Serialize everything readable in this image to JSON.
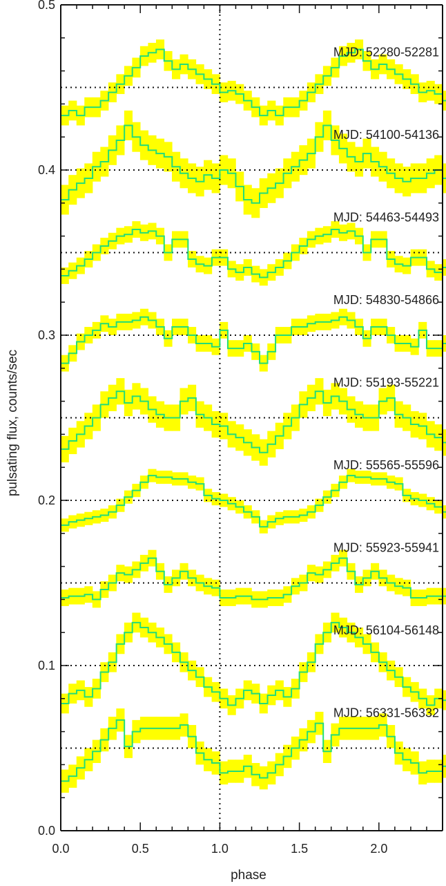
{
  "chart_data": {
    "type": "line",
    "xlabel": "phase",
    "ylabel": "pulsating flux, counts/sec",
    "xlim": [
      0.0,
      2.4
    ],
    "ylim": [
      0.0,
      0.5
    ],
    "xticks": [
      0.0,
      0.5,
      1.0,
      1.5,
      2.0
    ],
    "xtick_labels": [
      "0.0",
      "0.5",
      "1.0",
      "1.5",
      "2.0"
    ],
    "yticks": [
      0.0,
      0.1,
      0.2,
      0.3,
      0.4,
      0.5
    ],
    "ytick_labels": [
      "0.0",
      "0.1",
      "0.2",
      "0.3",
      "0.4",
      "0.5"
    ],
    "vertical_reference_line": 1.0,
    "grid": false,
    "line_color": "#22dd77",
    "error_band_color": "#ffff00",
    "bin_width": 0.05,
    "series": [
      {
        "name": "MJD: 52280-52281",
        "baseline": 0.45,
        "error": 0.006,
        "values": [
          0.433,
          0.436,
          0.433,
          0.438,
          0.438,
          0.442,
          0.447,
          0.452,
          0.457,
          0.462,
          0.469,
          0.471,
          0.473,
          0.466,
          0.461,
          0.464,
          0.461,
          0.458,
          0.455,
          0.452,
          0.447,
          0.448,
          0.446,
          0.442,
          0.438,
          0.433,
          0.436,
          0.433,
          0.438,
          0.438,
          0.442,
          0.447,
          0.452,
          0.457,
          0.462,
          0.469,
          0.471,
          0.473,
          0.466,
          0.461,
          0.464,
          0.461,
          0.458,
          0.455,
          0.452,
          0.447,
          0.448,
          0.446,
          0.442,
          0.438
        ]
      },
      {
        "name": "MJD: 54100-54136",
        "baseline": 0.4,
        "error": 0.009,
        "values": [
          0.382,
          0.388,
          0.392,
          0.395,
          0.402,
          0.405,
          0.412,
          0.418,
          0.427,
          0.42,
          0.415,
          0.412,
          0.41,
          0.408,
          0.402,
          0.398,
          0.395,
          0.393,
          0.397,
          0.395,
          0.4,
          0.398,
          0.39,
          0.382,
          0.38,
          0.386,
          0.389,
          0.392,
          0.398,
          0.402,
          0.406,
          0.41,
          0.42,
          0.427,
          0.418,
          0.413,
          0.408,
          0.405,
          0.41,
          0.405,
          0.402,
          0.398,
          0.395,
          0.393,
          0.395,
          0.395,
          0.398,
          0.4,
          0.395,
          0.382
        ]
      },
      {
        "name": "MJD: 54463-54493",
        "baseline": 0.35,
        "error": 0.005,
        "values": [
          0.336,
          0.339,
          0.342,
          0.346,
          0.35,
          0.354,
          0.357,
          0.36,
          0.361,
          0.364,
          0.362,
          0.363,
          0.36,
          0.35,
          0.358,
          0.358,
          0.346,
          0.343,
          0.342,
          0.347,
          0.347,
          0.34,
          0.338,
          0.341,
          0.337,
          0.335,
          0.338,
          0.341,
          0.345,
          0.35,
          0.354,
          0.358,
          0.36,
          0.361,
          0.364,
          0.362,
          0.363,
          0.36,
          0.35,
          0.358,
          0.358,
          0.346,
          0.343,
          0.342,
          0.347,
          0.347,
          0.34,
          0.338,
          0.341,
          0.338
        ]
      },
      {
        "name": "MJD: 54830-54866",
        "baseline": 0.3,
        "error": 0.005,
        "values": [
          0.283,
          0.289,
          0.296,
          0.3,
          0.303,
          0.307,
          0.305,
          0.308,
          0.308,
          0.309,
          0.311,
          0.309,
          0.305,
          0.298,
          0.305,
          0.305,
          0.3,
          0.295,
          0.295,
          0.293,
          0.303,
          0.292,
          0.292,
          0.295,
          0.29,
          0.283,
          0.29,
          0.3,
          0.3,
          0.305,
          0.305,
          0.307,
          0.308,
          0.308,
          0.309,
          0.311,
          0.309,
          0.305,
          0.298,
          0.305,
          0.305,
          0.3,
          0.295,
          0.295,
          0.293,
          0.303,
          0.292,
          0.292,
          0.295,
          0.288
        ]
      },
      {
        "name": "MJD: 55193-55221",
        "baseline": 0.25,
        "error": 0.008,
        "values": [
          0.231,
          0.236,
          0.24,
          0.245,
          0.25,
          0.258,
          0.262,
          0.266,
          0.259,
          0.263,
          0.26,
          0.255,
          0.252,
          0.25,
          0.25,
          0.26,
          0.262,
          0.252,
          0.25,
          0.246,
          0.245,
          0.24,
          0.238,
          0.235,
          0.232,
          0.229,
          0.234,
          0.239,
          0.245,
          0.25,
          0.258,
          0.262,
          0.266,
          0.259,
          0.263,
          0.26,
          0.255,
          0.252,
          0.25,
          0.25,
          0.26,
          0.262,
          0.252,
          0.25,
          0.246,
          0.245,
          0.24,
          0.238,
          0.235,
          0.231
        ]
      },
      {
        "name": "MJD: 55565-55596",
        "baseline": 0.2,
        "error": 0.004,
        "values": [
          0.185,
          0.187,
          0.188,
          0.189,
          0.19,
          0.191,
          0.193,
          0.197,
          0.202,
          0.206,
          0.211,
          0.215,
          0.214,
          0.214,
          0.213,
          0.213,
          0.211,
          0.21,
          0.203,
          0.201,
          0.2,
          0.198,
          0.196,
          0.193,
          0.19,
          0.184,
          0.187,
          0.189,
          0.19,
          0.19,
          0.191,
          0.193,
          0.197,
          0.202,
          0.206,
          0.211,
          0.215,
          0.214,
          0.214,
          0.213,
          0.213,
          0.211,
          0.21,
          0.203,
          0.201,
          0.2,
          0.198,
          0.196,
          0.193,
          0.193
        ]
      },
      {
        "name": "MJD: 55923-55941",
        "baseline": 0.15,
        "error": 0.005,
        "values": [
          0.141,
          0.142,
          0.142,
          0.143,
          0.14,
          0.146,
          0.15,
          0.156,
          0.155,
          0.158,
          0.162,
          0.165,
          0.157,
          0.149,
          0.153,
          0.157,
          0.153,
          0.15,
          0.148,
          0.147,
          0.141,
          0.141,
          0.142,
          0.142,
          0.14,
          0.14,
          0.141,
          0.141,
          0.143,
          0.148,
          0.15,
          0.156,
          0.155,
          0.158,
          0.162,
          0.165,
          0.157,
          0.149,
          0.153,
          0.157,
          0.153,
          0.15,
          0.148,
          0.147,
          0.141,
          0.141,
          0.142,
          0.142,
          0.142,
          0.142
        ]
      },
      {
        "name": "MJD: 56104-56148",
        "baseline": 0.1,
        "error": 0.006,
        "values": [
          0.077,
          0.083,
          0.085,
          0.081,
          0.086,
          0.096,
          0.102,
          0.113,
          0.12,
          0.126,
          0.123,
          0.12,
          0.117,
          0.113,
          0.108,
          0.102,
          0.097,
          0.093,
          0.087,
          0.084,
          0.08,
          0.076,
          0.08,
          0.085,
          0.083,
          0.077,
          0.082,
          0.085,
          0.081,
          0.086,
          0.096,
          0.102,
          0.113,
          0.12,
          0.126,
          0.123,
          0.12,
          0.117,
          0.113,
          0.108,
          0.102,
          0.097,
          0.093,
          0.087,
          0.084,
          0.08,
          0.076,
          0.08,
          0.079,
          0.077
        ]
      },
      {
        "name": "MJD: 56331-56332",
        "baseline": 0.05,
        "error": 0.007,
        "values": [
          0.03,
          0.033,
          0.038,
          0.043,
          0.048,
          0.055,
          0.062,
          0.067,
          0.051,
          0.06,
          0.062,
          0.062,
          0.062,
          0.062,
          0.062,
          0.064,
          0.057,
          0.047,
          0.043,
          0.041,
          0.035,
          0.036,
          0.036,
          0.039,
          0.034,
          0.032,
          0.035,
          0.04,
          0.045,
          0.05,
          0.055,
          0.06,
          0.065,
          0.048,
          0.058,
          0.062,
          0.062,
          0.062,
          0.062,
          0.062,
          0.064,
          0.057,
          0.047,
          0.043,
          0.041,
          0.035,
          0.036,
          0.036,
          0.039,
          0.036
        ]
      }
    ]
  }
}
